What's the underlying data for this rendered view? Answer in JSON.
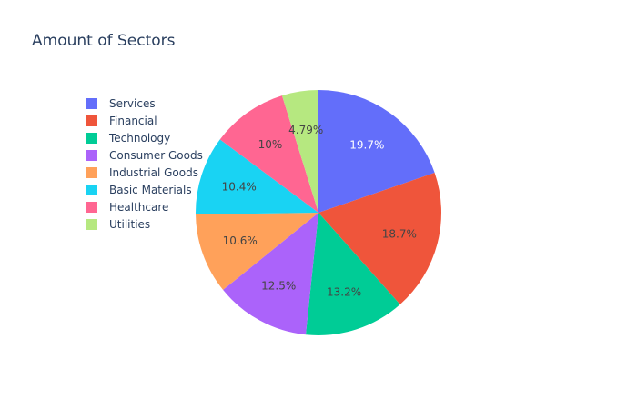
{
  "chart_data": {
    "type": "pie",
    "title": "Amount of Sectors",
    "categories": [
      "Services",
      "Financial",
      "Technology",
      "Consumer Goods",
      "Industrial Goods",
      "Basic Materials",
      "Healthcare",
      "Utilities"
    ],
    "values": [
      19.7,
      18.7,
      13.2,
      12.5,
      10.6,
      10.4,
      10.0,
      4.79
    ],
    "value_labels": [
      "19.7%",
      "18.7%",
      "13.2%",
      "12.5%",
      "10.6%",
      "10.4%",
      "10%",
      "4.79%"
    ],
    "colors": [
      "#636efa",
      "#ef553b",
      "#00cc96",
      "#ab63fa",
      "#ffa15a",
      "#19d3f3",
      "#ff6692",
      "#b6e880"
    ],
    "label_colors": [
      "#ffffff",
      "#444444",
      "#444444",
      "#444444",
      "#444444",
      "#444444",
      "#444444",
      "#444444"
    ],
    "start_angle": "12 o'clock",
    "direction": "clockwise",
    "legend_position": "top-left"
  }
}
